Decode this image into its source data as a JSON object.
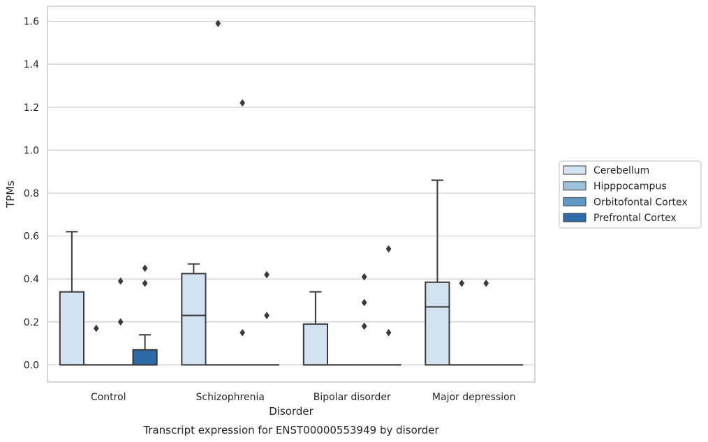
{
  "chart_data": {
    "type": "box",
    "title": "Transcript expression for ENST00000553949 by disorder",
    "xlabel": "Disorder",
    "ylabel": "TPMs",
    "ylim": [
      -0.08,
      1.67
    ],
    "yticks": [
      "0.0",
      "0.2",
      "0.4",
      "0.6",
      "0.8",
      "1.0",
      "1.2",
      "1.4",
      "1.6"
    ],
    "grid": "horizontal",
    "legend_position": "right",
    "categories": [
      "Control",
      "Schizophrenia",
      "Bipolar disorder",
      "Major depression"
    ],
    "series": [
      {
        "name": "Cerebellum",
        "color": "#d3e2f0",
        "boxes": [
          {
            "q1": 0.0,
            "median": 0.0,
            "q3": 0.34,
            "whisker_low": 0.0,
            "whisker_high": 0.62,
            "outliers": []
          },
          {
            "q1": 0.0,
            "median": 0.23,
            "q3": 0.425,
            "whisker_low": 0.0,
            "whisker_high": 0.47,
            "outliers": []
          },
          {
            "q1": 0.0,
            "median": 0.0,
            "q3": 0.19,
            "whisker_low": 0.0,
            "whisker_high": 0.34,
            "outliers": []
          },
          {
            "q1": 0.0,
            "median": 0.27,
            "q3": 0.385,
            "whisker_low": 0.0,
            "whisker_high": 0.86,
            "outliers": []
          }
        ]
      },
      {
        "name": "Hipppocampus",
        "color": "#9fc3dc",
        "boxes": [
          {
            "q1": 0.0,
            "median": 0.0,
            "q3": 0.0,
            "whisker_low": 0.0,
            "whisker_high": 0.0,
            "outliers": [
              0.17
            ]
          },
          {
            "q1": 0.0,
            "median": 0.0,
            "q3": 0.0,
            "whisker_low": 0.0,
            "whisker_high": 0.0,
            "outliers": [
              1.59
            ]
          },
          {
            "q1": 0.0,
            "median": 0.0,
            "q3": 0.0,
            "whisker_low": 0.0,
            "whisker_high": 0.0,
            "outliers": []
          },
          {
            "q1": 0.0,
            "median": 0.0,
            "q3": 0.0,
            "whisker_low": 0.0,
            "whisker_high": 0.0,
            "outliers": [
              0.38
            ]
          }
        ]
      },
      {
        "name": "Orbitofontal Cortex",
        "color": "#5f98c5",
        "boxes": [
          {
            "q1": 0.0,
            "median": 0.0,
            "q3": 0.0,
            "whisker_low": 0.0,
            "whisker_high": 0.0,
            "outliers": [
              0.2,
              0.39
            ]
          },
          {
            "q1": 0.0,
            "median": 0.0,
            "q3": 0.0,
            "whisker_low": 0.0,
            "whisker_high": 0.0,
            "outliers": [
              0.15,
              1.22
            ]
          },
          {
            "q1": 0.0,
            "median": 0.0,
            "q3": 0.0,
            "whisker_low": 0.0,
            "whisker_high": 0.0,
            "outliers": [
              0.18,
              0.29,
              0.41
            ]
          },
          {
            "q1": 0.0,
            "median": 0.0,
            "q3": 0.0,
            "whisker_low": 0.0,
            "whisker_high": 0.0,
            "outliers": [
              0.38
            ]
          }
        ]
      },
      {
        "name": "Prefrontal Cortex",
        "color": "#2d6aa8",
        "boxes": [
          {
            "q1": 0.0,
            "median": 0.0,
            "q3": 0.07,
            "whisker_low": 0.0,
            "whisker_high": 0.14,
            "outliers": [
              0.38,
              0.45
            ]
          },
          {
            "q1": 0.0,
            "median": 0.0,
            "q3": 0.0,
            "whisker_low": 0.0,
            "whisker_high": 0.0,
            "outliers": [
              0.23,
              0.42
            ]
          },
          {
            "q1": 0.0,
            "median": 0.0,
            "q3": 0.0,
            "whisker_low": 0.0,
            "whisker_high": 0.0,
            "outliers": [
              0.15,
              0.54
            ]
          },
          {
            "q1": 0.0,
            "median": 0.0,
            "q3": 0.0,
            "whisker_low": 0.0,
            "whisker_high": 0.0,
            "outliers": []
          }
        ]
      }
    ]
  }
}
